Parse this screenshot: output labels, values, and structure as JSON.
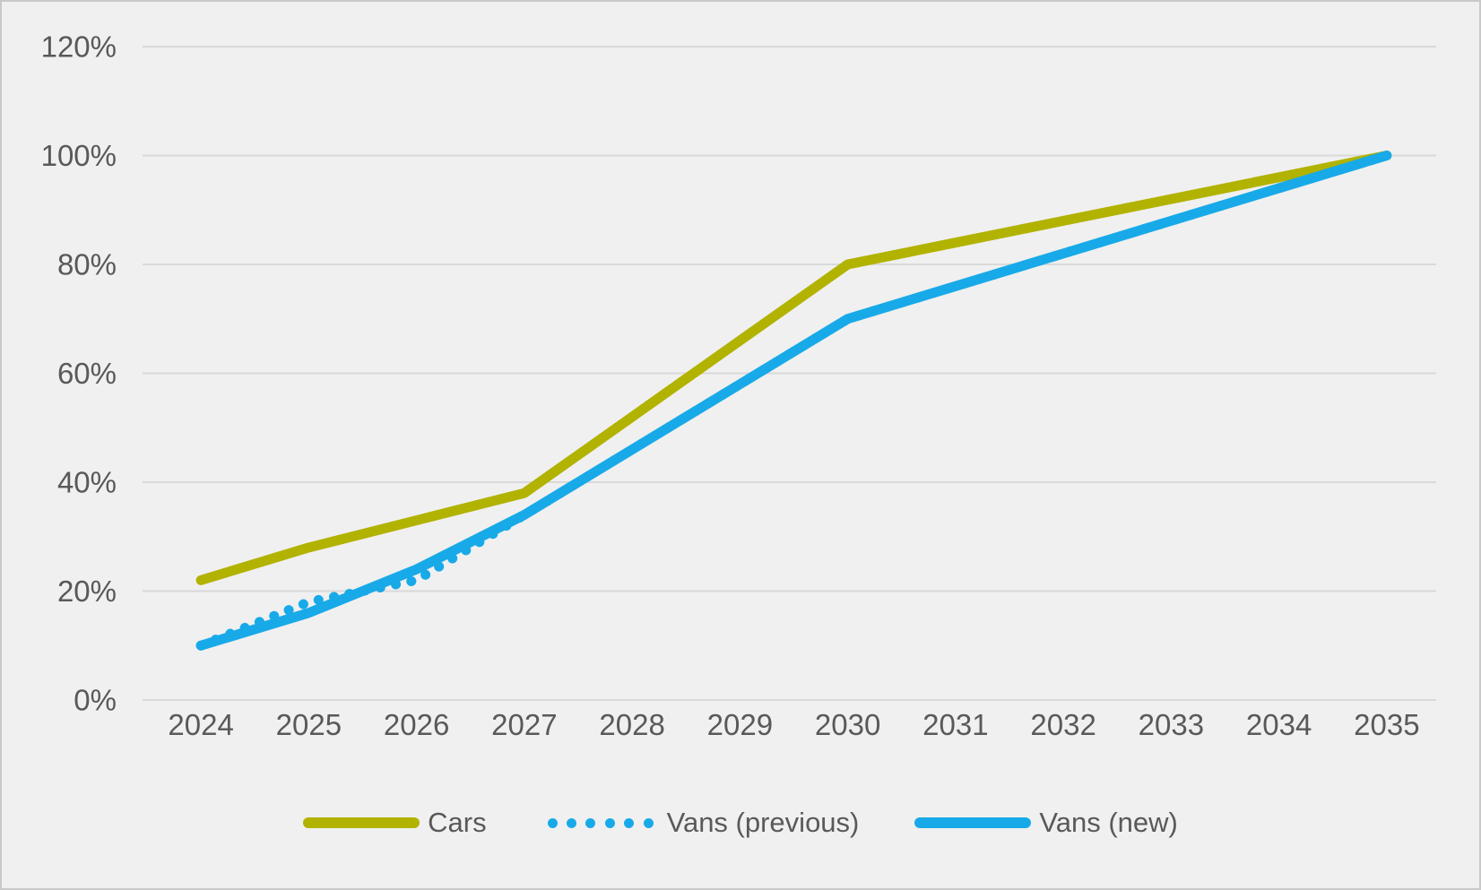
{
  "chart_data": {
    "type": "line",
    "title": "",
    "x_categories": [
      "2024",
      "2025",
      "2026",
      "2027",
      "2028",
      "2029",
      "2030",
      "2031",
      "2032",
      "2033",
      "2034",
      "2035"
    ],
    "y_axis": {
      "min": 0,
      "max": 120,
      "step": 20,
      "tick_labels": [
        "0%",
        "20%",
        "40%",
        "60%",
        "80%",
        "100%",
        "120%"
      ]
    },
    "grid": true,
    "legend_position": "bottom",
    "series": [
      {
        "name": "Cars",
        "style": "solid",
        "color": "#b2b200",
        "values": [
          22,
          28,
          33,
          38,
          52,
          66,
          80,
          84,
          88,
          92,
          96,
          100
        ]
      },
      {
        "name": "Vans (previous)",
        "style": "dotted",
        "color": "#18aae8",
        "values": [
          10,
          18,
          22,
          34,
          46,
          58,
          70,
          76,
          82,
          88,
          94,
          100
        ]
      },
      {
        "name": "Vans (new)",
        "style": "solid",
        "color": "#18aae8",
        "values": [
          10,
          16,
          24,
          34,
          46,
          58,
          70,
          76,
          82,
          88,
          94,
          100
        ]
      }
    ],
    "colors": {
      "background": "#f0f0f0",
      "frame_border": "#c9c9c9",
      "gridline": "#d9d9d9",
      "axis_text": "#595959"
    },
    "legend": {
      "items": [
        "Cars",
        "Vans (previous)",
        "Vans (new)"
      ]
    }
  }
}
